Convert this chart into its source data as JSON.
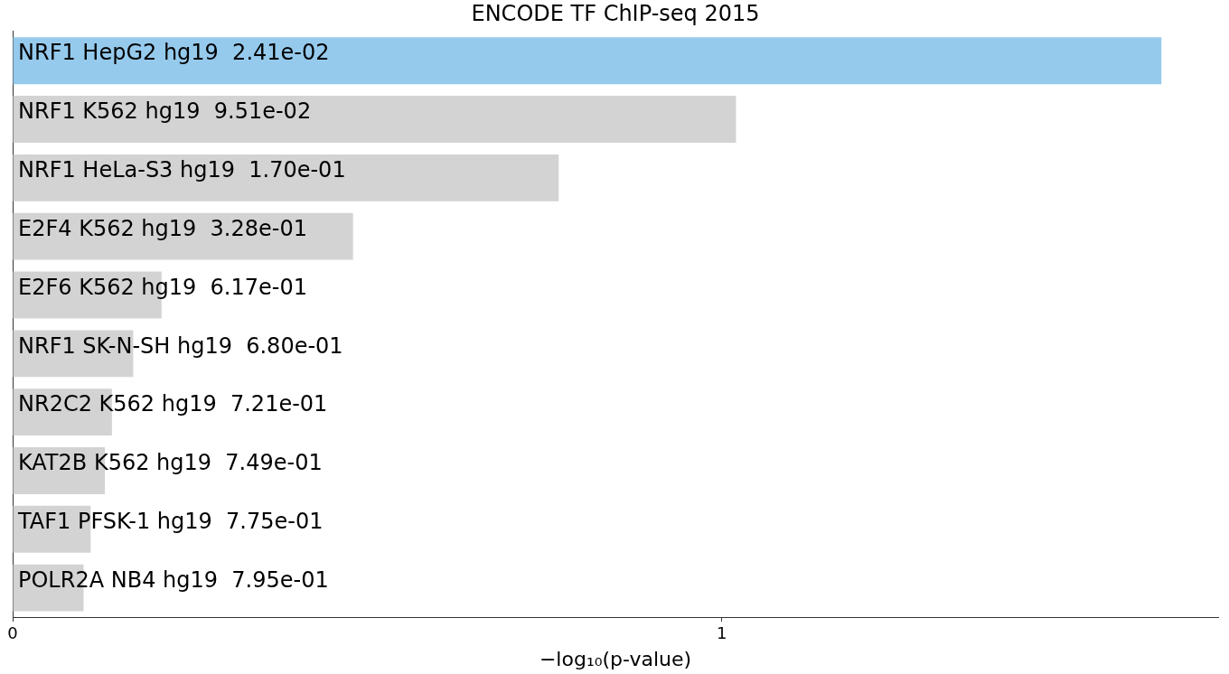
{
  "chart_data": {
    "type": "bar",
    "orientation": "horizontal",
    "title": "ENCODE TF ChIP-seq 2015",
    "xlabel": "−log₁₀(p-value)",
    "categories": [
      "NRF1 HepG2 hg19  2.41e-02",
      "NRF1 K562 hg19  9.51e-02",
      "NRF1 HeLa-S3 hg19  1.70e-01",
      "E2F4 K562 hg19  3.28e-01",
      "E2F6 K562 hg19  6.17e-01",
      "NRF1 SK-N-SH hg19  6.80e-01",
      "NR2C2 K562 hg19  7.21e-01",
      "KAT2B K562 hg19  7.49e-01",
      "TAF1 PFSK-1 hg19  7.75e-01",
      "POLR2A NB4 hg19  7.95e-01"
    ],
    "values": [
      1.62,
      1.02,
      0.77,
      0.48,
      0.21,
      0.17,
      0.14,
      0.13,
      0.11,
      0.1
    ],
    "colors": [
      "#95caed",
      "#d3d3d3",
      "#d3d3d3",
      "#d3d3d3",
      "#d3d3d3",
      "#d3d3d3",
      "#d3d3d3",
      "#d3d3d3",
      "#d3d3d3",
      "#d3d3d3"
    ],
    "xlim": [
      0,
      1.7
    ],
    "xticks": [
      0,
      1
    ]
  }
}
